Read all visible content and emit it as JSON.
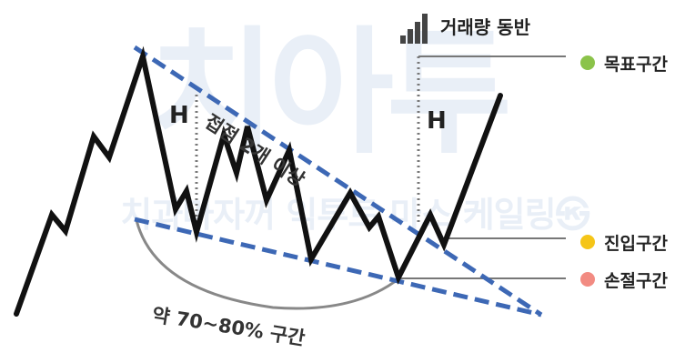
{
  "watermark": {
    "main": "치아투",
    "sub": "치과마자꺼 익투토 마스 케일링㉿"
  },
  "volume_label": "거래량 동반",
  "h_label_left": "H",
  "h_label_right": "H",
  "touch_label": "접점 2개 이상",
  "range_label": "약 70~80% 구간",
  "zones": {
    "target": {
      "label": "목표구간",
      "color": "#8bc34a"
    },
    "entry": {
      "label": "진입구간",
      "color": "#f5c518"
    },
    "stop": {
      "label": "손절구간",
      "color": "#f28b82"
    }
  },
  "colors": {
    "trendline": "#3d68b5",
    "price": "#111111",
    "guide": "#777777",
    "arc": "#888888"
  }
}
